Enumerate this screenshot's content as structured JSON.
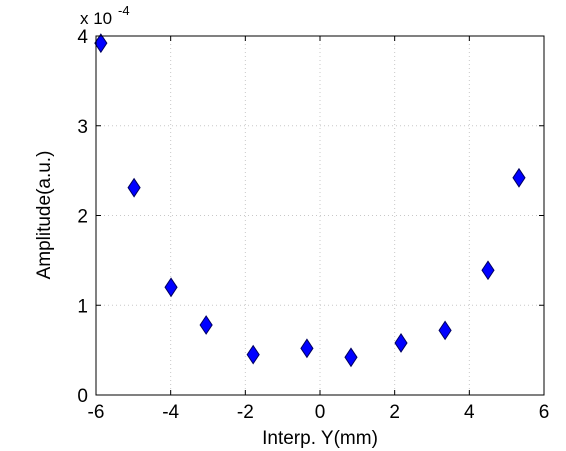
{
  "chart_data": {
    "type": "scatter",
    "x_label": "Interp. Y(mm)",
    "y_label": "Amplitude(a.u.)",
    "y_multiplier": {
      "base": "x 10",
      "exponent": "-4"
    },
    "series": [
      {
        "color": "#0000ff",
        "x": [
          -5.87,
          -4.98,
          -3.99,
          -3.05,
          -1.79,
          -0.35,
          0.83,
          2.17,
          3.35,
          4.5,
          5.33
        ],
        "values": [
          3.92,
          2.31,
          1.2,
          0.78,
          0.45,
          0.52,
          0.42,
          0.58,
          0.72,
          1.39,
          2.42
        ]
      }
    ],
    "xlim": [
      -6,
      6
    ],
    "xticks": [
      -6,
      -4,
      -2,
      0,
      2,
      4,
      6
    ],
    "ylim": [
      0,
      4
    ],
    "yticks": [
      0,
      1,
      2,
      3,
      4
    ],
    "grid": true
  }
}
